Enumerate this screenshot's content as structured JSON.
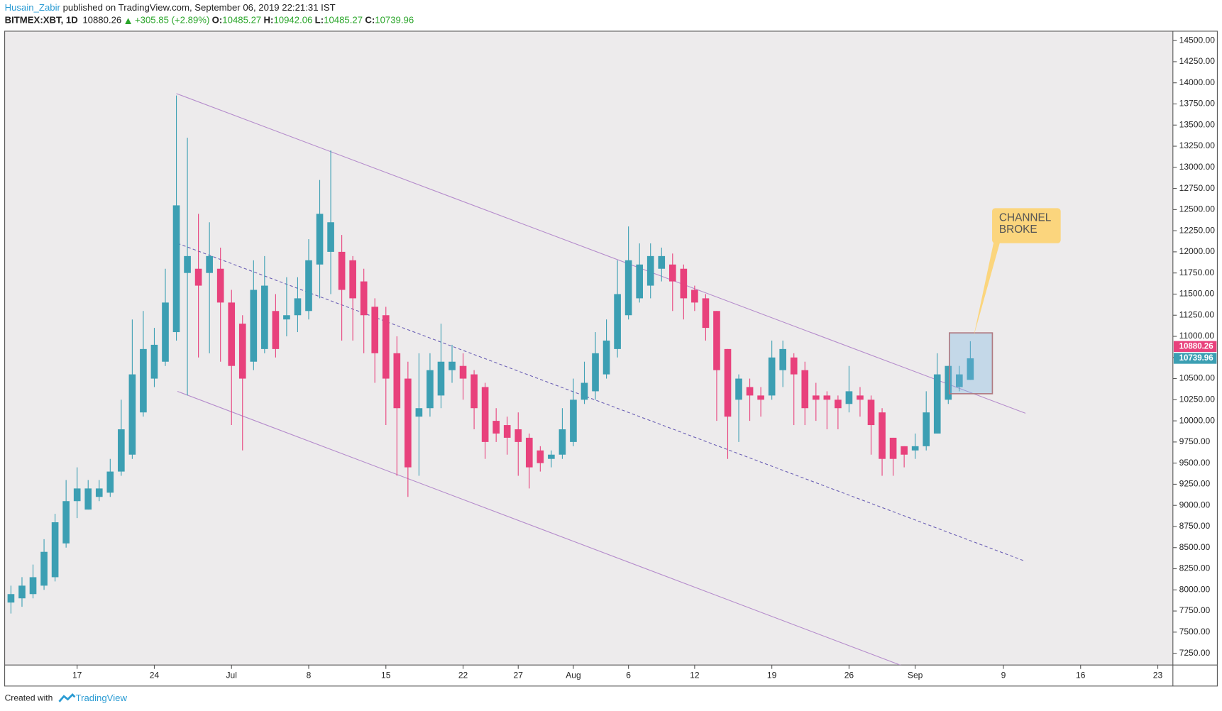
{
  "header": {
    "author": "Husain_Zabir",
    "published": " published on TradingView.com, September 06, 2019 22:21:31 IST",
    "symbol": "BITMEX:XBT, 1D",
    "price": "10880.26",
    "change": "+305.85 (+2.89%)",
    "ohlc": [
      {
        "label": "O:",
        "value": "10485.27"
      },
      {
        "label": "H:",
        "value": "10942.06"
      },
      {
        "label": "L:",
        "value": "10485.27"
      },
      {
        "label": "C:",
        "value": "10739.96"
      }
    ]
  },
  "footer": {
    "text": "Created with",
    "brand": "TradingView"
  },
  "chart_data": {
    "type": "candlestick",
    "up_color": "#3c9fb3",
    "down_color": "#e8417c",
    "x": [
      0,
      1,
      2,
      3,
      4,
      5,
      6,
      7,
      8,
      9,
      10,
      11,
      12,
      13,
      14,
      15,
      16,
      17,
      18,
      19,
      20,
      21,
      22,
      23,
      24,
      25,
      26,
      27,
      28,
      29,
      30,
      31,
      32,
      33,
      34,
      35,
      36,
      37,
      38,
      39,
      40,
      41,
      42,
      43,
      44,
      45,
      46,
      47,
      48,
      49,
      50,
      51,
      52,
      53,
      54,
      55,
      56,
      57,
      58,
      59,
      60,
      61,
      62,
      63,
      64,
      65,
      66,
      67,
      68,
      69,
      70,
      71,
      72,
      73,
      74,
      75,
      76,
      77,
      78,
      79,
      80,
      81,
      82,
      83,
      84,
      85,
      86,
      87
    ],
    "open": [
      7850,
      7900,
      7950,
      8050,
      8150,
      8550,
      9050,
      8950,
      9100,
      9150,
      9400,
      9600,
      10100,
      10500,
      10700,
      11050,
      11750,
      11800,
      11750,
      11800,
      11400,
      11150,
      10700,
      10850,
      11300,
      11200,
      11250,
      11300,
      11850,
      12000,
      12000,
      11900,
      11650,
      11350,
      11250,
      10800,
      10500,
      10050,
      10150,
      10300,
      10600,
      10650,
      10550,
      10400,
      10000,
      9950,
      9900,
      9800,
      9650,
      9550,
      9600,
      9750,
      10250,
      10350,
      10550,
      10850,
      11250,
      11450,
      11600,
      11800,
      11850,
      11800,
      11550,
      11450,
      11300,
      10850,
      10250,
      10400,
      10300,
      10300,
      10600,
      10750,
      10600,
      10300,
      10300,
      10250,
      10200,
      10300,
      10250,
      10100,
      9800,
      9700,
      9650,
      9700,
      9850,
      10250,
      10400,
      10485.27
    ],
    "high": [
      8050,
      8150,
      8300,
      8600,
      8900,
      9300,
      9450,
      9300,
      9300,
      9550,
      10250,
      11200,
      11300,
      11100,
      11800,
      13850,
      13350,
      12450,
      12350,
      12050,
      11550,
      11250,
      11900,
      11950,
      11500,
      11700,
      11700,
      12150,
      12850,
      13200,
      12200,
      11950,
      11800,
      11450,
      11350,
      11000,
      10700,
      10800,
      10800,
      11150,
      10900,
      10800,
      10600,
      10450,
      10150,
      10050,
      10100,
      9850,
      9700,
      9650,
      10150,
      10500,
      10700,
      11050,
      11200,
      11900,
      12300,
      12100,
      12100,
      12050,
      11980,
      11850,
      11600,
      11500,
      11300,
      10850,
      10550,
      10500,
      10400,
      10950,
      10950,
      10800,
      10700,
      10450,
      10350,
      10300,
      10650,
      10400,
      10300,
      10150,
      9800,
      9700,
      9850,
      10350,
      10800,
      10650,
      10650,
      10942.06
    ],
    "low": [
      7720,
      7800,
      7900,
      8000,
      8100,
      8500,
      8850,
      8950,
      9050,
      9100,
      9350,
      9550,
      10050,
      10400,
      10650,
      10950,
      10300,
      10750,
      10800,
      10700,
      9950,
      9650,
      10600,
      10800,
      10750,
      11000,
      11050,
      11200,
      11450,
      11500,
      10950,
      10950,
      10800,
      10450,
      9950,
      9350,
      9100,
      9350,
      10050,
      10150,
      10450,
      10250,
      9900,
      9550,
      9750,
      9600,
      9350,
      9200,
      9400,
      9450,
      9550,
      9700,
      10200,
      10250,
      10500,
      10750,
      11200,
      11400,
      11450,
      11650,
      11300,
      11200,
      11300,
      10950,
      10000,
      9550,
      9750,
      10000,
      10050,
      10250,
      10400,
      9950,
      9950,
      10000,
      9900,
      9900,
      10100,
      10050,
      9600,
      9350,
      9350,
      9450,
      9550,
      9650,
      9850,
      10200,
      10350,
      10485.27
    ],
    "close": [
      7950,
      8050,
      8150,
      8450,
      8800,
      9050,
      9200,
      9200,
      9200,
      9400,
      9900,
      10550,
      10850,
      10900,
      11400,
      12550,
      11950,
      11600,
      11950,
      11400,
      10650,
      10500,
      11550,
      11600,
      10850,
      11250,
      11450,
      11900,
      12450,
      12350,
      11550,
      11450,
      11250,
      10800,
      10500,
      10150,
      9450,
      10150,
      10600,
      10700,
      10700,
      10500,
      10150,
      9750,
      9850,
      9800,
      9750,
      9450,
      9500,
      9600,
      9900,
      10250,
      10450,
      10800,
      10950,
      11500,
      11900,
      11850,
      11950,
      11950,
      11650,
      11450,
      11400,
      11100,
      10600,
      10050,
      10500,
      10300,
      10250,
      10750,
      10850,
      10550,
      10150,
      10250,
      10250,
      10150,
      10350,
      10250,
      9950,
      9550,
      9550,
      9600,
      9700,
      10100,
      10550,
      10650,
      10550,
      10739.96
    ],
    "xlim": [
      -0.57,
      105.37
    ],
    "ylim": [
      7111,
      14611
    ],
    "xticks": [
      {
        "value": 6,
        "label": "17"
      },
      {
        "value": 13,
        "label": "24"
      },
      {
        "value": 20,
        "label": "Jul"
      },
      {
        "value": 27,
        "label": "8"
      },
      {
        "value": 34,
        "label": "15"
      },
      {
        "value": 41,
        "label": "22"
      },
      {
        "value": 46,
        "label": "27"
      },
      {
        "value": 51,
        "label": "Aug"
      },
      {
        "value": 56,
        "label": "6"
      },
      {
        "value": 62,
        "label": "12"
      },
      {
        "value": 69,
        "label": "19"
      },
      {
        "value": 76,
        "label": "26"
      },
      {
        "value": 82,
        "label": "Sep"
      },
      {
        "value": 90,
        "label": "9"
      },
      {
        "value": 97,
        "label": "16"
      },
      {
        "value": 104,
        "label": "23"
      }
    ],
    "yticks": [
      {
        "value": 7250,
        "label": "7250.00"
      },
      {
        "value": 7500,
        "label": "7500.00"
      },
      {
        "value": 7750,
        "label": "7750.00"
      },
      {
        "value": 8000,
        "label": "8000.00"
      },
      {
        "value": 8250,
        "label": "8250.00"
      },
      {
        "value": 8500,
        "label": "8500.00"
      },
      {
        "value": 8750,
        "label": "8750.00"
      },
      {
        "value": 9000,
        "label": "9000.00"
      },
      {
        "value": 9250,
        "label": "9250.00"
      },
      {
        "value": 9500,
        "label": "9500.00"
      },
      {
        "value": 9750,
        "label": "9750.00"
      },
      {
        "value": 10000,
        "label": "10000.00"
      },
      {
        "value": 10250,
        "label": "10250.00"
      },
      {
        "value": 10500,
        "label": "10500.00"
      },
      {
        "value": 10750,
        "label": "10750.00"
      },
      {
        "value": 11000,
        "label": "11000.00"
      },
      {
        "value": 11250,
        "label": "11250.00"
      },
      {
        "value": 11500,
        "label": "11500.00"
      },
      {
        "value": 11750,
        "label": "11750.00"
      },
      {
        "value": 12000,
        "label": "12000.00"
      },
      {
        "value": 12250,
        "label": "12250.00"
      },
      {
        "value": 12500,
        "label": "12500.00"
      },
      {
        "value": 12750,
        "label": "12750.00"
      },
      {
        "value": 13000,
        "label": "13000.00"
      },
      {
        "value": 13250,
        "label": "13250.00"
      },
      {
        "value": 13500,
        "label": "13500.00"
      },
      {
        "value": 13750,
        "label": "13750.00"
      },
      {
        "value": 14000,
        "label": "14000.00"
      },
      {
        "value": 14250,
        "label": "14250.00"
      },
      {
        "value": 14500,
        "label": "14500.00"
      }
    ],
    "price_labels": [
      {
        "value": 10880.26,
        "color": "#e8417c"
      },
      {
        "value": 10739.96,
        "color": "#3c9fb3"
      }
    ],
    "trendlines": [
      {
        "x": [
          15,
          92
        ],
        "y": [
          13873,
          10090
        ],
        "color": "#b58ccc",
        "dashed": false
      },
      {
        "x": [
          15.1,
          81
        ],
        "y": [
          10349,
          7093
        ],
        "color": "#b58ccc",
        "dashed": false
      },
      {
        "x": [
          15.1,
          92
        ],
        "y": [
          12101,
          8338
        ],
        "color": "#6b5fb5",
        "dashed": true
      }
    ],
    "box": {
      "x": [
        85.1,
        89.0
      ],
      "y": [
        10321,
        11041
      ]
    },
    "annotation": {
      "text": [
        "CHANNEL",
        "BROKE"
      ],
      "x": 87.3,
      "y": 11000
    }
  }
}
